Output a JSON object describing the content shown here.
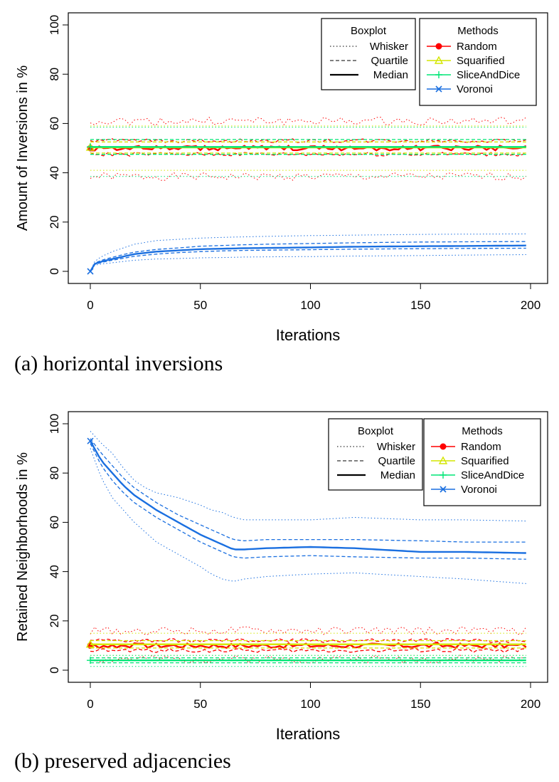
{
  "chart_data": [
    {
      "type": "line",
      "caption": "(a) horizontal inversions",
      "xlabel": "Iterations",
      "ylabel": "Amount of Inversions in %",
      "xlim": [
        0,
        200
      ],
      "ylim": [
        0,
        100
      ],
      "xticks": [
        0,
        50,
        100,
        150,
        200
      ],
      "yticks": [
        0,
        20,
        40,
        60,
        80,
        100
      ],
      "grid": false,
      "legend_boxplot": {
        "title": "Boxplot",
        "entries": [
          {
            "label": "Whisker",
            "style": "dotted"
          },
          {
            "label": "Quartile",
            "style": "dashed"
          },
          {
            "label": "Median",
            "style": "solid"
          }
        ]
      },
      "legend_methods": {
        "title": "Methods",
        "entries": [
          {
            "label": "Random",
            "color": "#ff0000",
            "marker": "circle"
          },
          {
            "label": "Squarified",
            "color": "#d4e600",
            "marker": "triangle"
          },
          {
            "label": "SliceAndDice",
            "color": "#00e676",
            "marker": "plus"
          },
          {
            "label": "Voronoi",
            "color": "#1a6fe0",
            "marker": "x"
          }
        ]
      },
      "series": [
        {
          "name": "Random",
          "color": "#ff0000",
          "noisy": true,
          "whisker_low": 38.5,
          "q1": 47.5,
          "median": 50,
          "q3": 53,
          "whisker_high": 61
        },
        {
          "name": "Squarified",
          "color": "#d4e600",
          "noisy": false,
          "whisker_low": 41,
          "q1": 48,
          "median": 50.3,
          "q3": 52.5,
          "whisker_high": 59
        },
        {
          "name": "SliceAndDice",
          "color": "#00e676",
          "noisy": false,
          "whisker_low": 38.5,
          "q1": 47.5,
          "median": 50.5,
          "q3": 53.5,
          "whisker_high": 58.5
        },
        {
          "name": "Voronoi",
          "color": "#1a6fe0",
          "noisy": false,
          "x": [
            0,
            2,
            5,
            10,
            15,
            20,
            30,
            40,
            50,
            60,
            70,
            80,
            100,
            120,
            150,
            170,
            200
          ],
          "median": [
            0,
            3,
            4,
            5,
            6,
            7,
            8,
            8.5,
            9,
            9.2,
            9.4,
            9.5,
            9.7,
            10,
            10.2,
            10.3,
            10.5
          ],
          "q1": [
            0,
            2.8,
            3.6,
            4.5,
            5.3,
            6.1,
            7.0,
            7.6,
            8.0,
            8.3,
            8.5,
            8.6,
            8.8,
            9.0,
            9.2,
            9.3,
            9.4
          ],
          "q3": [
            0,
            3.3,
            4.5,
            5.7,
            6.8,
            7.8,
            8.9,
            9.5,
            10.2,
            10.5,
            10.8,
            11.0,
            11.3,
            11.6,
            11.9,
            12.0,
            12.1
          ],
          "whisker_low": [
            0,
            2.5,
            3.0,
            3.5,
            4.0,
            4.5,
            5.0,
            5.2,
            5.5,
            5.6,
            5.8,
            5.9,
            6.0,
            6.2,
            6.4,
            6.6,
            6.8
          ],
          "whisker_high": [
            0,
            4.0,
            6.0,
            8.0,
            9.5,
            11.0,
            12.5,
            13.0,
            13.5,
            13.8,
            14.0,
            14.2,
            14.5,
            14.7,
            15.0,
            15.1,
            15.2
          ]
        }
      ]
    },
    {
      "type": "line",
      "caption": "(b) preserved adjacencies",
      "xlabel": "Iterations",
      "ylabel": "Retained Neighborhoods in %",
      "xlim": [
        0,
        200
      ],
      "ylim": [
        0,
        100
      ],
      "xticks": [
        0,
        50,
        100,
        150,
        200
      ],
      "yticks": [
        0,
        20,
        40,
        60,
        80,
        100
      ],
      "grid": false,
      "legend_boxplot": {
        "title": "Boxplot",
        "entries": [
          {
            "label": "Whisker",
            "style": "dotted"
          },
          {
            "label": "Quartile",
            "style": "dashed"
          },
          {
            "label": "Median",
            "style": "solid"
          }
        ]
      },
      "legend_methods": {
        "title": "Methods",
        "entries": [
          {
            "label": "Random",
            "color": "#ff0000",
            "marker": "circle"
          },
          {
            "label": "Squarified",
            "color": "#d4e600",
            "marker": "triangle"
          },
          {
            "label": "SliceAndDice",
            "color": "#00e676",
            "marker": "plus"
          },
          {
            "label": "Voronoi",
            "color": "#1a6fe0",
            "marker": "x"
          }
        ]
      },
      "series": [
        {
          "name": "Random",
          "color": "#ff0000",
          "noisy": true,
          "whisker_low": 4.5,
          "q1": 8,
          "median": 10,
          "q3": 12,
          "whisker_high": 16
        },
        {
          "name": "Squarified",
          "color": "#d4e600",
          "noisy": false,
          "whisker_low": 6,
          "q1": 9,
          "median": 10.5,
          "q3": 12,
          "whisker_high": 15
        },
        {
          "name": "SliceAndDice",
          "color": "#00e676",
          "noisy": false,
          "whisker_low": 1.5,
          "q1": 3,
          "median": 4,
          "q3": 5,
          "whisker_high": 6
        },
        {
          "name": "Voronoi",
          "color": "#1a6fe0",
          "noisy": false,
          "x": [
            0,
            5,
            10,
            15,
            20,
            25,
            30,
            40,
            50,
            55,
            60,
            65,
            70,
            80,
            100,
            120,
            150,
            170,
            200
          ],
          "median": [
            93,
            85,
            80,
            75,
            71,
            68,
            65,
            60,
            55,
            53,
            51,
            49,
            49,
            49.5,
            50,
            49.5,
            48,
            48,
            47.5
          ],
          "q1": [
            92,
            83,
            77,
            72,
            68,
            65,
            62,
            57,
            52,
            50,
            48,
            46,
            45.5,
            46,
            46.5,
            46,
            45.5,
            45.5,
            45
          ],
          "q3": [
            94,
            88,
            83,
            78,
            74,
            71,
            68,
            63,
            59,
            57,
            55,
            53,
            52.5,
            53,
            53,
            53,
            52.5,
            52,
            52
          ],
          "whisker_low": [
            90,
            78,
            70,
            65,
            60,
            56,
            52,
            47,
            42,
            39,
            37,
            36,
            37,
            38,
            39,
            39.5,
            38,
            37,
            35
          ],
          "whisker_high": [
            97,
            92,
            88,
            82,
            77,
            74,
            72,
            70,
            67,
            65,
            64,
            62,
            61,
            61,
            61,
            62,
            61,
            61,
            60.5
          ]
        }
      ]
    }
  ]
}
